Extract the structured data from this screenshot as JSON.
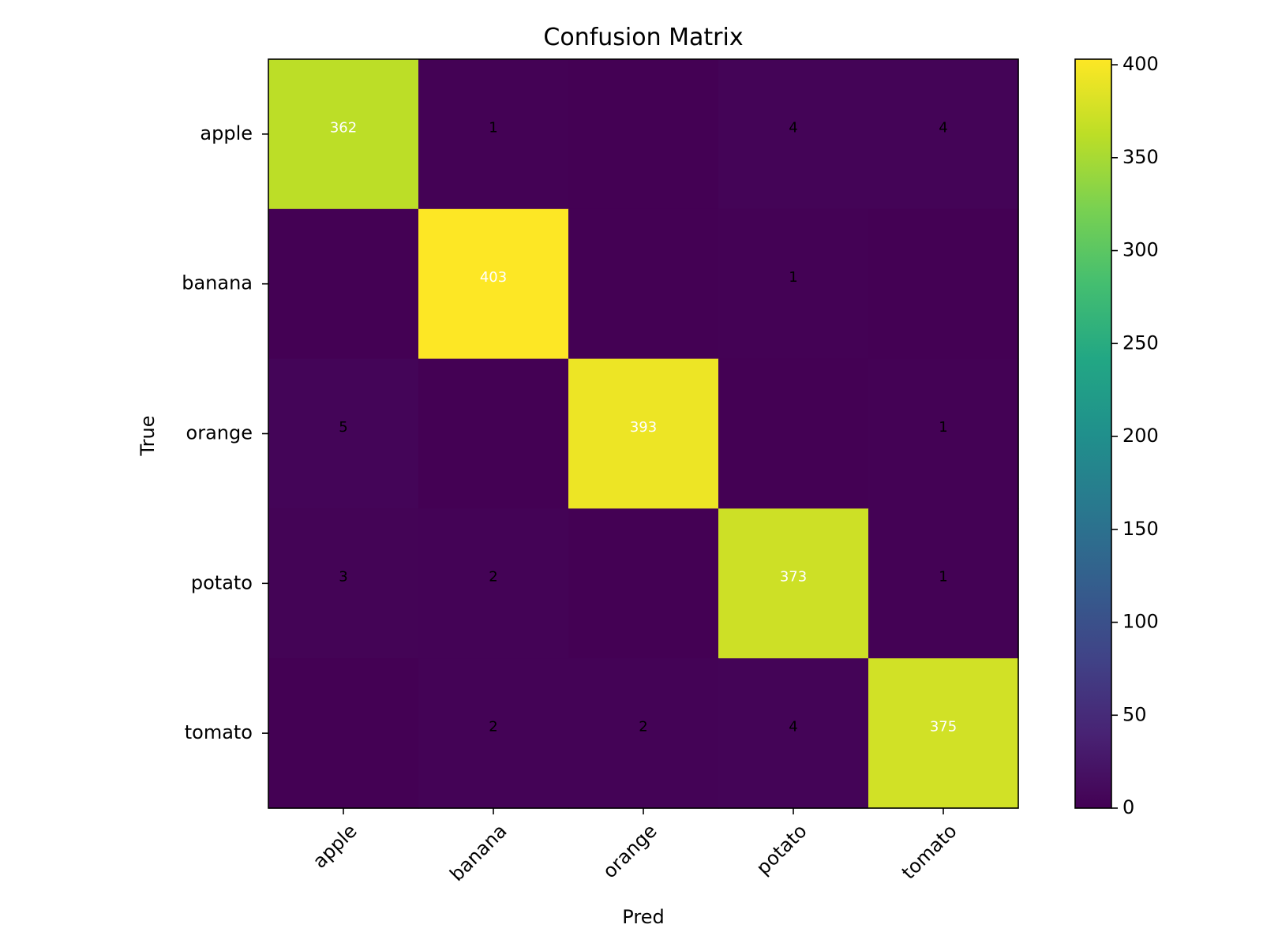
{
  "chart_data": {
    "type": "heatmap",
    "title": "Confusion Matrix",
    "xlabel": "Pred",
    "ylabel": "True",
    "x_categories": [
      "apple",
      "banana",
      "orange",
      "potato",
      "tomato"
    ],
    "y_categories": [
      "apple",
      "banana",
      "orange",
      "potato",
      "tomato"
    ],
    "matrix": [
      [
        362,
        1,
        0,
        4,
        4
      ],
      [
        0,
        403,
        0,
        1,
        0
      ],
      [
        5,
        0,
        393,
        0,
        1
      ],
      [
        3,
        2,
        0,
        373,
        1
      ],
      [
        0,
        2,
        2,
        4,
        375
      ]
    ],
    "colormap": "viridis",
    "zero_cells_labeled": false,
    "colorbar": {
      "range": [
        0,
        403
      ],
      "ticks": [
        0,
        50,
        100,
        150,
        200,
        250,
        300,
        350,
        400
      ]
    }
  }
}
